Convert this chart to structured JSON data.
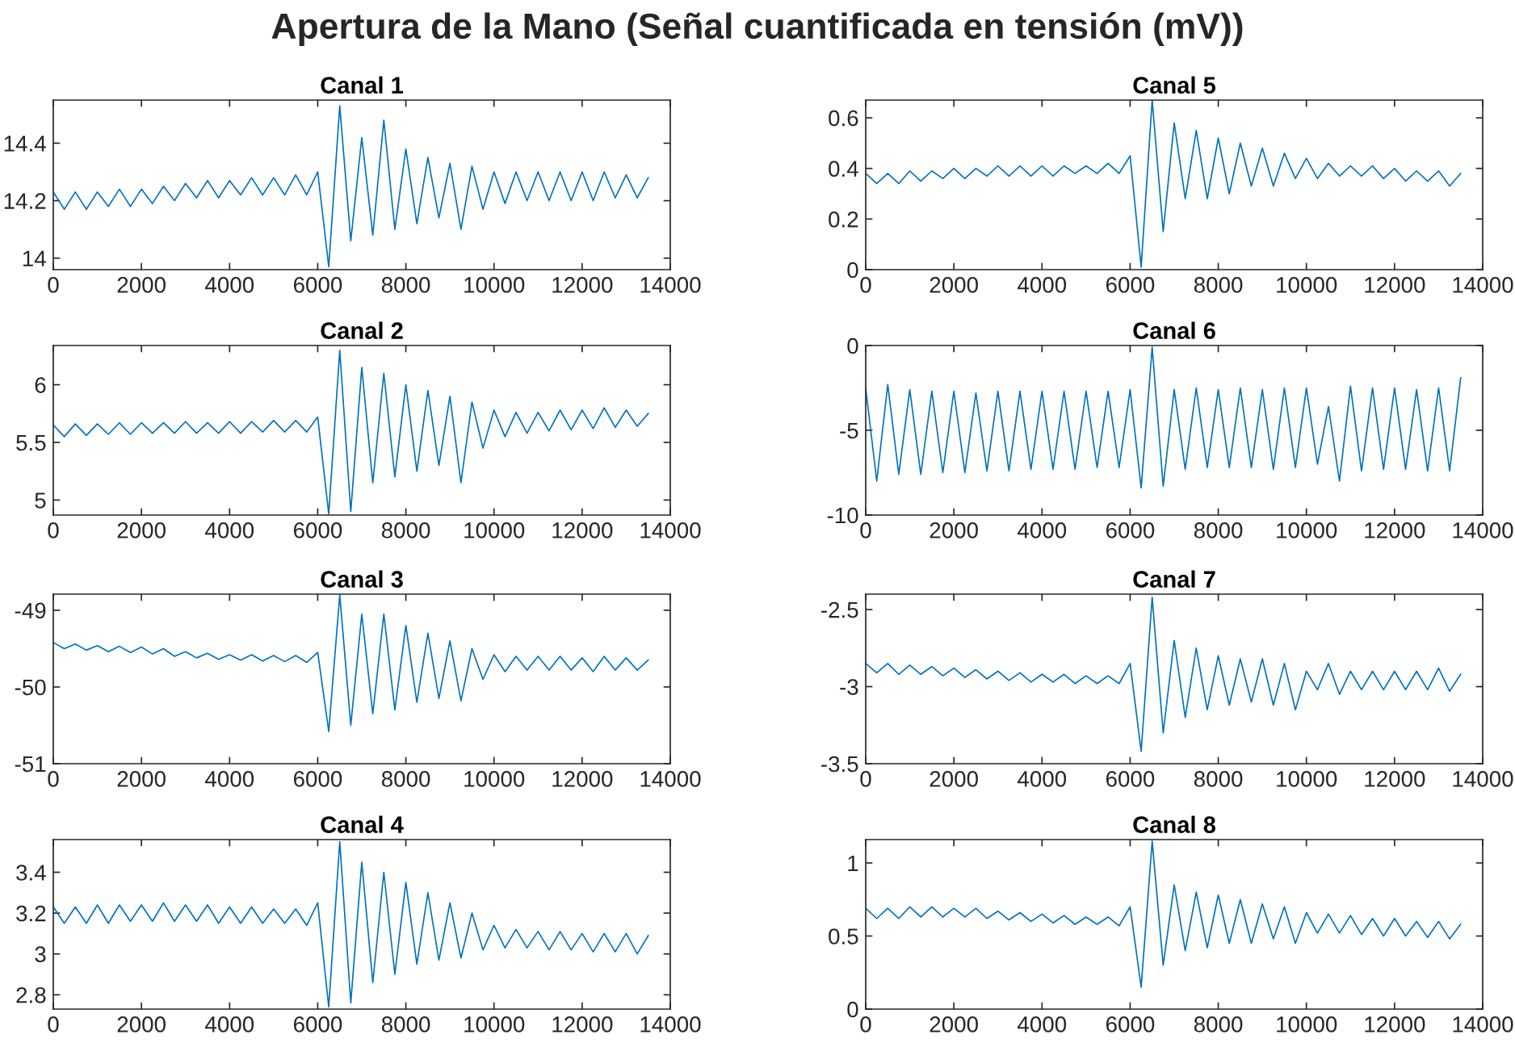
{
  "chart_data": [
    {
      "type": "line",
      "title": "Canal 1",
      "annotations": [
        "Apertura de la Mano (Señal cuantificada en tensión (mV))"
      ],
      "x": [
        0,
        250,
        500,
        750,
        1000,
        1250,
        1500,
        1750,
        2000,
        2250,
        2500,
        2750,
        3000,
        3250,
        3500,
        3750,
        4000,
        4250,
        4500,
        4750,
        5000,
        5250,
        5500,
        5750,
        6000,
        6250,
        6500,
        6750,
        7000,
        7250,
        7500,
        7750,
        8000,
        8250,
        8500,
        8750,
        9000,
        9250,
        9500,
        9750,
        10000,
        10250,
        10500,
        10750,
        11000,
        11250,
        11500,
        11750,
        12000,
        12250,
        12500,
        12750,
        13000,
        13250,
        13500
      ],
      "series": [
        {
          "color": "#0072bd",
          "values": [
            14.23,
            14.17,
            14.23,
            14.17,
            14.23,
            14.18,
            14.24,
            14.18,
            14.24,
            14.19,
            14.25,
            14.2,
            14.26,
            14.21,
            14.27,
            14.21,
            14.27,
            14.22,
            14.28,
            14.22,
            14.28,
            14.22,
            14.29,
            14.22,
            14.3,
            13.97,
            14.53,
            14.06,
            14.42,
            14.08,
            14.48,
            14.1,
            14.38,
            14.12,
            14.35,
            14.14,
            14.33,
            14.1,
            14.32,
            14.17,
            14.3,
            14.19,
            14.3,
            14.2,
            14.3,
            14.2,
            14.3,
            14.2,
            14.3,
            14.2,
            14.3,
            14.21,
            14.29,
            14.21,
            14.28
          ]
        }
      ],
      "xlim": [
        0,
        14000
      ],
      "xticks": [
        0,
        2000,
        4000,
        6000,
        8000,
        10000,
        12000,
        14000
      ],
      "ylim": [
        13.96,
        14.55
      ],
      "yticks": [
        14,
        14.2,
        14.4
      ],
      "grid": false,
      "legend": false
    },
    {
      "type": "line",
      "title": "Canal 5",
      "x": [
        0,
        250,
        500,
        750,
        1000,
        1250,
        1500,
        1750,
        2000,
        2250,
        2500,
        2750,
        3000,
        3250,
        3500,
        3750,
        4000,
        4250,
        4500,
        4750,
        5000,
        5250,
        5500,
        5750,
        6000,
        6250,
        6500,
        6750,
        7000,
        7250,
        7500,
        7750,
        8000,
        8250,
        8500,
        8750,
        9000,
        9250,
        9500,
        9750,
        10000,
        10250,
        10500,
        10750,
        11000,
        11250,
        11500,
        11750,
        12000,
        12250,
        12500,
        12750,
        13000,
        13250,
        13500
      ],
      "series": [
        {
          "color": "#0072bd",
          "values": [
            0.38,
            0.34,
            0.38,
            0.34,
            0.39,
            0.35,
            0.39,
            0.36,
            0.4,
            0.36,
            0.4,
            0.37,
            0.41,
            0.37,
            0.41,
            0.37,
            0.41,
            0.37,
            0.41,
            0.38,
            0.41,
            0.38,
            0.42,
            0.38,
            0.45,
            0.01,
            0.67,
            0.15,
            0.58,
            0.28,
            0.55,
            0.28,
            0.52,
            0.3,
            0.5,
            0.33,
            0.48,
            0.33,
            0.46,
            0.36,
            0.44,
            0.36,
            0.42,
            0.37,
            0.41,
            0.37,
            0.41,
            0.36,
            0.4,
            0.35,
            0.39,
            0.35,
            0.39,
            0.33,
            0.38
          ]
        }
      ],
      "xlim": [
        0,
        14000
      ],
      "xticks": [
        0,
        2000,
        4000,
        6000,
        8000,
        10000,
        12000,
        14000
      ],
      "ylim": [
        0,
        0.67
      ],
      "yticks": [
        0,
        0.2,
        0.4,
        0.6
      ],
      "grid": false,
      "legend": false
    },
    {
      "type": "line",
      "title": "Canal 2",
      "x": [
        0,
        250,
        500,
        750,
        1000,
        1250,
        1500,
        1750,
        2000,
        2250,
        2500,
        2750,
        3000,
        3250,
        3500,
        3750,
        4000,
        4250,
        4500,
        4750,
        5000,
        5250,
        5500,
        5750,
        6000,
        6250,
        6500,
        6750,
        7000,
        7250,
        7500,
        7750,
        8000,
        8250,
        8500,
        8750,
        9000,
        9250,
        9500,
        9750,
        10000,
        10250,
        10500,
        10750,
        11000,
        11250,
        11500,
        11750,
        12000,
        12250,
        12500,
        12750,
        13000,
        13250,
        13500
      ],
      "series": [
        {
          "color": "#0072bd",
          "values": [
            5.65,
            5.55,
            5.66,
            5.56,
            5.66,
            5.57,
            5.67,
            5.57,
            5.67,
            5.58,
            5.67,
            5.58,
            5.68,
            5.58,
            5.67,
            5.58,
            5.68,
            5.58,
            5.68,
            5.59,
            5.69,
            5.59,
            5.69,
            5.59,
            5.72,
            4.88,
            6.3,
            4.9,
            6.15,
            5.15,
            6.1,
            5.2,
            6.0,
            5.25,
            5.95,
            5.3,
            5.9,
            5.15,
            5.85,
            5.45,
            5.78,
            5.55,
            5.76,
            5.58,
            5.76,
            5.6,
            5.78,
            5.61,
            5.78,
            5.62,
            5.8,
            5.63,
            5.78,
            5.64,
            5.75
          ]
        }
      ],
      "xlim": [
        0,
        14000
      ],
      "xticks": [
        0,
        2000,
        4000,
        6000,
        8000,
        10000,
        12000,
        14000
      ],
      "ylim": [
        4.87,
        6.34
      ],
      "yticks": [
        5,
        5.5,
        6
      ],
      "grid": false,
      "legend": false
    },
    {
      "type": "line",
      "title": "Canal 6",
      "x": [
        0,
        250,
        500,
        750,
        1000,
        1250,
        1500,
        1750,
        2000,
        2250,
        2500,
        2750,
        3000,
        3250,
        3500,
        3750,
        4000,
        4250,
        4500,
        4750,
        5000,
        5250,
        5500,
        5750,
        6000,
        6250,
        6500,
        6750,
        7000,
        7250,
        7500,
        7750,
        8000,
        8250,
        8500,
        8750,
        9000,
        9250,
        9500,
        9750,
        10000,
        10250,
        10500,
        10750,
        11000,
        11250,
        11500,
        11750,
        12000,
        12250,
        12500,
        12750,
        13000,
        13250,
        13500
      ],
      "series": [
        {
          "color": "#0072bd",
          "values": [
            -2.5,
            -8.0,
            -2.3,
            -7.6,
            -2.6,
            -7.6,
            -2.7,
            -7.5,
            -2.7,
            -7.5,
            -2.8,
            -7.4,
            -2.7,
            -7.4,
            -2.7,
            -7.3,
            -2.7,
            -7.3,
            -2.7,
            -7.3,
            -2.7,
            -7.2,
            -2.7,
            -7.2,
            -2.6,
            -8.4,
            -0.1,
            -8.3,
            -2.6,
            -7.3,
            -2.5,
            -7.2,
            -2.6,
            -7.2,
            -2.5,
            -7.2,
            -2.6,
            -7.3,
            -2.5,
            -7.2,
            -2.5,
            -7.0,
            -3.6,
            -8.0,
            -2.4,
            -7.4,
            -2.5,
            -7.3,
            -2.5,
            -7.3,
            -2.6,
            -7.4,
            -2.5,
            -7.4,
            -1.9
          ]
        }
      ],
      "xlim": [
        0,
        14000
      ],
      "xticks": [
        0,
        2000,
        4000,
        6000,
        8000,
        10000,
        12000,
        14000
      ],
      "ylim": [
        -10,
        0
      ],
      "yticks": [
        -10,
        -5,
        0
      ],
      "grid": false,
      "legend": false
    },
    {
      "type": "line",
      "title": "Canal 3",
      "x": [
        0,
        250,
        500,
        750,
        1000,
        1250,
        1500,
        1750,
        2000,
        2250,
        2500,
        2750,
        3000,
        3250,
        3500,
        3750,
        4000,
        4250,
        4500,
        4750,
        5000,
        5250,
        5500,
        5750,
        6000,
        6250,
        6500,
        6750,
        7000,
        7250,
        7500,
        7750,
        8000,
        8250,
        8500,
        8750,
        9000,
        9250,
        9500,
        9750,
        10000,
        10250,
        10500,
        10750,
        11000,
        11250,
        11500,
        11750,
        12000,
        12250,
        12500,
        12750,
        13000,
        13250,
        13500
      ],
      "series": [
        {
          "color": "#0072bd",
          "values": [
            -49.42,
            -49.5,
            -49.44,
            -49.52,
            -49.46,
            -49.54,
            -49.47,
            -49.55,
            -49.48,
            -49.57,
            -49.5,
            -49.6,
            -49.54,
            -49.62,
            -49.56,
            -49.64,
            -49.58,
            -49.65,
            -49.58,
            -49.66,
            -49.59,
            -49.67,
            -49.59,
            -49.68,
            -49.55,
            -50.58,
            -48.8,
            -50.5,
            -49.05,
            -50.35,
            -49.05,
            -50.3,
            -49.2,
            -50.2,
            -49.3,
            -50.15,
            -49.4,
            -50.18,
            -49.5,
            -49.9,
            -49.58,
            -49.8,
            -49.6,
            -49.78,
            -49.6,
            -49.78,
            -49.6,
            -49.78,
            -49.62,
            -49.8,
            -49.6,
            -49.78,
            -49.62,
            -49.78,
            -49.65
          ]
        }
      ],
      "xlim": [
        0,
        14000
      ],
      "xticks": [
        0,
        2000,
        4000,
        6000,
        8000,
        10000,
        12000,
        14000
      ],
      "ylim": [
        -51,
        -48.79
      ],
      "yticks": [
        -51,
        -50,
        -49
      ],
      "grid": false,
      "legend": false
    },
    {
      "type": "line",
      "title": "Canal 7",
      "x": [
        0,
        250,
        500,
        750,
        1000,
        1250,
        1500,
        1750,
        2000,
        2250,
        2500,
        2750,
        3000,
        3250,
        3500,
        3750,
        4000,
        4250,
        4500,
        4750,
        5000,
        5250,
        5500,
        5750,
        6000,
        6250,
        6500,
        6750,
        7000,
        7250,
        7500,
        7750,
        8000,
        8250,
        8500,
        8750,
        9000,
        9250,
        9500,
        9750,
        10000,
        10250,
        10500,
        10750,
        11000,
        11250,
        11500,
        11750,
        12000,
        12250,
        12500,
        12750,
        13000,
        13250,
        13500
      ],
      "series": [
        {
          "color": "#0072bd",
          "values": [
            -2.85,
            -2.91,
            -2.85,
            -2.92,
            -2.86,
            -2.92,
            -2.87,
            -2.93,
            -2.88,
            -2.94,
            -2.89,
            -2.95,
            -2.9,
            -2.96,
            -2.91,
            -2.97,
            -2.92,
            -2.97,
            -2.92,
            -2.98,
            -2.93,
            -2.98,
            -2.93,
            -2.98,
            -2.85,
            -3.42,
            -2.42,
            -3.3,
            -2.7,
            -3.2,
            -2.75,
            -3.15,
            -2.8,
            -3.12,
            -2.82,
            -3.1,
            -2.82,
            -3.12,
            -2.85,
            -3.15,
            -2.9,
            -3.02,
            -2.85,
            -3.05,
            -2.9,
            -3.02,
            -2.9,
            -3.02,
            -2.9,
            -3.02,
            -2.9,
            -3.02,
            -2.88,
            -3.03,
            -2.92
          ]
        }
      ],
      "xlim": [
        0,
        14000
      ],
      "xticks": [
        0,
        2000,
        4000,
        6000,
        8000,
        10000,
        12000,
        14000
      ],
      "ylim": [
        -3.5,
        -2.4
      ],
      "yticks": [
        -3.5,
        -3,
        -2.5
      ],
      "grid": false,
      "legend": false
    },
    {
      "type": "line",
      "title": "Canal 4",
      "x": [
        0,
        250,
        500,
        750,
        1000,
        1250,
        1500,
        1750,
        2000,
        2250,
        2500,
        2750,
        3000,
        3250,
        3500,
        3750,
        4000,
        4250,
        4500,
        4750,
        5000,
        5250,
        5500,
        5750,
        6000,
        6250,
        6500,
        6750,
        7000,
        7250,
        7500,
        7750,
        8000,
        8250,
        8500,
        8750,
        9000,
        9250,
        9500,
        9750,
        10000,
        10250,
        10500,
        10750,
        11000,
        11250,
        11500,
        11750,
        12000,
        12250,
        12500,
        12750,
        13000,
        13250,
        13500
      ],
      "series": [
        {
          "color": "#0072bd",
          "values": [
            3.23,
            3.15,
            3.23,
            3.15,
            3.24,
            3.15,
            3.24,
            3.16,
            3.24,
            3.16,
            3.25,
            3.16,
            3.24,
            3.16,
            3.24,
            3.15,
            3.23,
            3.15,
            3.23,
            3.15,
            3.22,
            3.15,
            3.22,
            3.14,
            3.25,
            2.74,
            3.55,
            2.76,
            3.45,
            2.86,
            3.4,
            2.9,
            3.35,
            2.95,
            3.3,
            2.97,
            3.25,
            2.98,
            3.2,
            3.02,
            3.14,
            3.03,
            3.12,
            3.03,
            3.11,
            3.02,
            3.11,
            3.02,
            3.1,
            3.01,
            3.1,
            3.01,
            3.1,
            3.0,
            3.09
          ]
        }
      ],
      "xlim": [
        0,
        14000
      ],
      "xticks": [
        0,
        2000,
        4000,
        6000,
        8000,
        10000,
        12000,
        14000
      ],
      "ylim": [
        2.73,
        3.56
      ],
      "yticks": [
        2.8,
        3,
        3.2,
        3.4
      ],
      "grid": false,
      "legend": false
    },
    {
      "type": "line",
      "title": "Canal 8",
      "x": [
        0,
        250,
        500,
        750,
        1000,
        1250,
        1500,
        1750,
        2000,
        2250,
        2500,
        2750,
        3000,
        3250,
        3500,
        3750,
        4000,
        4250,
        4500,
        4750,
        5000,
        5250,
        5500,
        5750,
        6000,
        6250,
        6500,
        6750,
        7000,
        7250,
        7500,
        7750,
        8000,
        8250,
        8500,
        8750,
        9000,
        9250,
        9500,
        9750,
        10000,
        10250,
        10500,
        10750,
        11000,
        11250,
        11500,
        11750,
        12000,
        12250,
        12500,
        12750,
        13000,
        13250,
        13500
      ],
      "series": [
        {
          "color": "#0072bd",
          "values": [
            0.69,
            0.62,
            0.69,
            0.62,
            0.7,
            0.63,
            0.7,
            0.63,
            0.69,
            0.63,
            0.69,
            0.62,
            0.67,
            0.61,
            0.66,
            0.6,
            0.65,
            0.59,
            0.64,
            0.58,
            0.63,
            0.58,
            0.63,
            0.57,
            0.7,
            0.15,
            1.15,
            0.3,
            0.85,
            0.4,
            0.8,
            0.42,
            0.78,
            0.45,
            0.75,
            0.45,
            0.72,
            0.48,
            0.7,
            0.45,
            0.66,
            0.52,
            0.65,
            0.52,
            0.64,
            0.51,
            0.62,
            0.5,
            0.62,
            0.5,
            0.6,
            0.49,
            0.6,
            0.48,
            0.58
          ]
        }
      ],
      "xlim": [
        0,
        14000
      ],
      "xticks": [
        0,
        2000,
        4000,
        6000,
        8000,
        10000,
        12000,
        14000
      ],
      "ylim": [
        0,
        1.16
      ],
      "yticks": [
        0,
        0.5,
        1
      ],
      "grid": false,
      "legend": false
    }
  ]
}
